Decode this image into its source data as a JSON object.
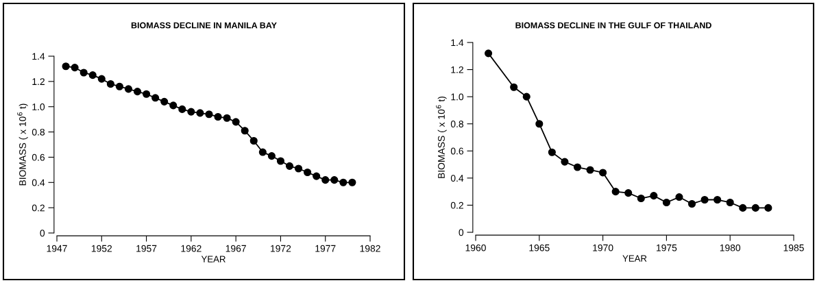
{
  "chart_data": [
    {
      "type": "line",
      "title": "BIOMASS DECLINE IN MANILA BAY",
      "xlabel": "YEAR",
      "ylabel": "BIOMASS ( x 10$^{6}$ t)",
      "x": [
        1948,
        1949,
        1950,
        1951,
        1952,
        1953,
        1954,
        1955,
        1956,
        1957,
        1958,
        1959,
        1960,
        1961,
        1962,
        1963,
        1964,
        1965,
        1966,
        1967,
        1968,
        1969,
        1970,
        1971,
        1972,
        1973,
        1974,
        1975,
        1976,
        1977,
        1978,
        1979,
        1980
      ],
      "series": [
        {
          "color": "#000000",
          "values": [
            1.32,
            1.31,
            1.27,
            1.25,
            1.22,
            1.18,
            1.16,
            1.14,
            1.12,
            1.1,
            1.07,
            1.04,
            1.01,
            0.98,
            0.96,
            0.95,
            0.94,
            0.92,
            0.91,
            0.88,
            0.81,
            0.73,
            0.64,
            0.61,
            0.57,
            0.53,
            0.51,
            0.48,
            0.45,
            0.42,
            0.42,
            0.4,
            0.4
          ]
        }
      ],
      "xlim": [
        1947,
        1982
      ],
      "xticks": [
        1947,
        1952,
        1957,
        1962,
        1967,
        1972,
        1977,
        1982
      ],
      "ylim": [
        0,
        1.4
      ],
      "yticks": [
        0,
        0.2,
        0.4,
        0.6,
        0.8,
        {
          "value": 1.0,
          "label": "1.0"
        },
        1.2,
        1.4
      ],
      "grid": false,
      "marker": "circle",
      "line_style": "solid"
    },
    {
      "type": "line",
      "title": "BIOMASS DECLINE IN THE GULF OF THAILAND",
      "xlabel": "YEAR",
      "ylabel": "BIOMASS ( x 10$^{6}$ t)",
      "x": [
        1961,
        1963,
        1964,
        1965,
        1966,
        1967,
        1968,
        1969,
        1970,
        1971,
        1972,
        1973,
        1974,
        1975,
        1976,
        1977,
        1978,
        1979,
        1980,
        1981,
        1982,
        1983
      ],
      "series": [
        {
          "color": "#000000",
          "values": [
            1.32,
            1.07,
            1.0,
            0.8,
            0.59,
            0.52,
            0.48,
            0.46,
            0.44,
            0.3,
            0.29,
            0.25,
            0.27,
            0.22,
            0.26,
            0.21,
            0.24,
            0.24,
            0.22,
            0.18,
            0.18,
            0.18
          ]
        }
      ],
      "xlim": [
        1960,
        1985
      ],
      "xticks": [
        1960,
        1965,
        1970,
        1975,
        1980,
        1985
      ],
      "ylim": [
        0,
        1.4
      ],
      "yticks": [
        0,
        0.2,
        0.4,
        0.6,
        0.8,
        {
          "value": 1.0,
          "label": "1.0"
        },
        1.2,
        1.4
      ],
      "grid": false,
      "marker": "circle",
      "line_style": "solid"
    }
  ]
}
